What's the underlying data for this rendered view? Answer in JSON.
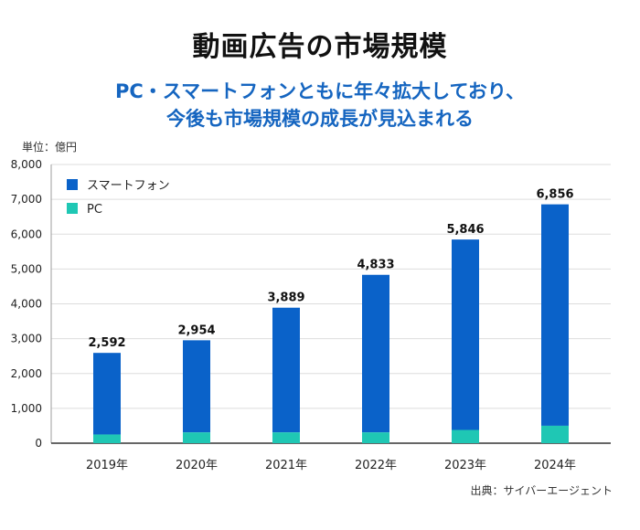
{
  "header": {
    "title": "動画広告の市場規模",
    "subtitle_line1": "PC・スマートフォンともに年々拡大しており、",
    "subtitle_line2": "今後も市場規模の成長が見込まれる"
  },
  "unit_label": "単位：億円",
  "source_label": "出典：サイバーエージェント",
  "colors": {
    "smartphone": "#0a62c9",
    "pc": "#1fc7b4",
    "grid": "#dddddd",
    "subtitle": "#1565c0"
  },
  "chart_data": {
    "type": "bar",
    "stacked": true,
    "categories": [
      "2019年",
      "2020年",
      "2021年",
      "2022年",
      "2023年",
      "2024年"
    ],
    "series": [
      {
        "name": "PC",
        "values": [
          250,
          310,
          310,
          310,
          380,
          500
        ]
      },
      {
        "name": "スマートフォン",
        "values": [
          2342,
          2644,
          3579,
          4523,
          5466,
          6356
        ]
      }
    ],
    "totals": [
      2592,
      2954,
      3889,
      4833,
      5846,
      6856
    ],
    "total_labels": [
      "2,592",
      "2,954",
      "3,889",
      "4,833",
      "5,846",
      "6,856"
    ],
    "yticks": [
      0,
      1000,
      2000,
      3000,
      4000,
      5000,
      6000,
      7000,
      8000
    ],
    "ytick_labels": [
      "0",
      "1,000",
      "2,000",
      "3,000",
      "4,000",
      "5,000",
      "6,000",
      "7,000",
      "8,000"
    ],
    "ylim": [
      0,
      8000
    ],
    "grid": true,
    "legend": {
      "position": "top-left",
      "entries": [
        "スマートフォン",
        "PC"
      ]
    }
  }
}
